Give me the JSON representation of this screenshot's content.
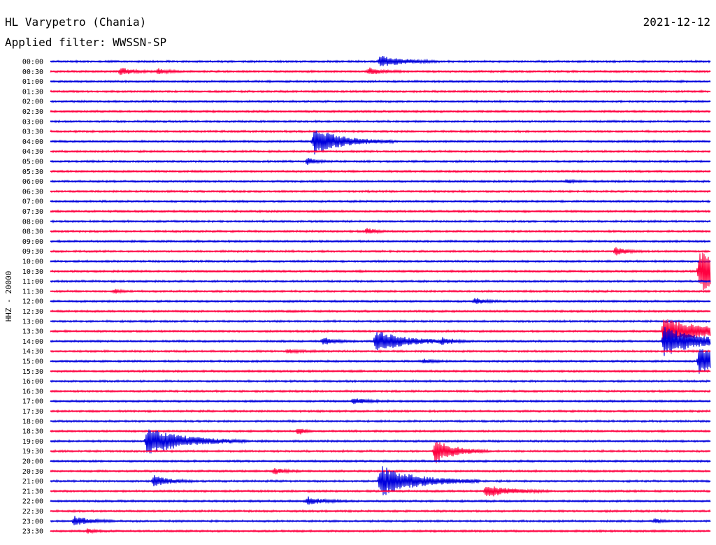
{
  "header": {
    "station": "HL Varypetro (Chania)",
    "date": "2021-12-12",
    "filter": "Applied filter: WWSSN-SP"
  },
  "colors": {
    "odd_row": "#0000dd",
    "even_row": "#ff0040",
    "text": "#000000",
    "background": "#ffffff"
  },
  "chart_data": {
    "type": "helicorder",
    "ylabel": "HHZ - 20000",
    "row_labels": [
      "00:00",
      "00:30",
      "01:00",
      "01:30",
      "02:00",
      "02:30",
      "03:00",
      "03:30",
      "04:00",
      "04:30",
      "05:00",
      "05:30",
      "06:00",
      "06:30",
      "07:00",
      "07:30",
      "08:00",
      "08:30",
      "09:00",
      "09:30",
      "10:00",
      "10:30",
      "11:00",
      "11:30",
      "12:00",
      "12:30",
      "13:00",
      "13:30",
      "14:00",
      "14:30",
      "15:00",
      "15:30",
      "16:00",
      "16:30",
      "17:00",
      "17:30",
      "18:00",
      "18:30",
      "19:00",
      "19:30",
      "20:00",
      "20:30",
      "21:00",
      "21:30",
      "22:00",
      "22:30",
      "23:00",
      "23:30"
    ],
    "minutes_per_row": 30,
    "series_colors": [
      "#0000dd",
      "#ff0040"
    ],
    "events": [
      {
        "row": 0,
        "minute": 15.0,
        "amp": 1.2,
        "dur": 0.9
      },
      {
        "row": 1,
        "minute": 3.2,
        "amp": 0.7,
        "dur": 0.5
      },
      {
        "row": 1,
        "minute": 4.9,
        "amp": 0.5,
        "dur": 0.4
      },
      {
        "row": 1,
        "minute": 14.5,
        "amp": 0.7,
        "dur": 0.5
      },
      {
        "row": 8,
        "minute": 12.0,
        "amp": 2.6,
        "dur": 1.2
      },
      {
        "row": 10,
        "minute": 11.7,
        "amp": 0.7,
        "dur": 0.3
      },
      {
        "row": 12,
        "minute": 23.5,
        "amp": 0.3,
        "dur": 0.3
      },
      {
        "row": 17,
        "minute": 14.4,
        "amp": 0.6,
        "dur": 0.3
      },
      {
        "row": 19,
        "minute": 25.7,
        "amp": 0.8,
        "dur": 0.4
      },
      {
        "row": 21,
        "minute": 29.5,
        "amp": 4.0,
        "dur": 2.0
      },
      {
        "row": 23,
        "minute": 2.9,
        "amp": 0.4,
        "dur": 0.3
      },
      {
        "row": 24,
        "minute": 19.3,
        "amp": 0.6,
        "dur": 0.4
      },
      {
        "row": 27,
        "minute": 27.9,
        "amp": 3.0,
        "dur": 1.6
      },
      {
        "row": 28,
        "minute": 12.4,
        "amp": 0.7,
        "dur": 0.5
      },
      {
        "row": 28,
        "minute": 14.8,
        "amp": 2.3,
        "dur": 1.2
      },
      {
        "row": 28,
        "minute": 17.8,
        "amp": 0.5,
        "dur": 0.5
      },
      {
        "row": 28,
        "minute": 27.9,
        "amp": 3.0,
        "dur": 1.4
      },
      {
        "row": 29,
        "minute": 10.8,
        "amp": 0.3,
        "dur": 0.5
      },
      {
        "row": 30,
        "minute": 17.0,
        "amp": 0.4,
        "dur": 0.3
      },
      {
        "row": 30,
        "minute": 29.5,
        "amp": 2.6,
        "dur": 1.4
      },
      {
        "row": 34,
        "minute": 13.8,
        "amp": 0.5,
        "dur": 0.6
      },
      {
        "row": 38,
        "minute": 4.4,
        "amp": 3.0,
        "dur": 1.5
      },
      {
        "row": 37,
        "minute": 11.3,
        "amp": 0.8,
        "dur": 0.2
      },
      {
        "row": 39,
        "minute": 17.5,
        "amp": 2.4,
        "dur": 0.8
      },
      {
        "row": 41,
        "minute": 10.2,
        "amp": 0.6,
        "dur": 0.4
      },
      {
        "row": 42,
        "minute": 4.7,
        "amp": 1.2,
        "dur": 0.6
      },
      {
        "row": 42,
        "minute": 15.0,
        "amp": 3.2,
        "dur": 1.5
      },
      {
        "row": 43,
        "minute": 19.8,
        "amp": 1.2,
        "dur": 1.0
      },
      {
        "row": 44,
        "minute": 11.7,
        "amp": 0.8,
        "dur": 0.6
      },
      {
        "row": 46,
        "minute": 1.1,
        "amp": 1.0,
        "dur": 0.6
      },
      {
        "row": 46,
        "minute": 27.5,
        "amp": 0.4,
        "dur": 0.3
      },
      {
        "row": 47,
        "minute": 1.7,
        "amp": 0.4,
        "dur": 0.3
      }
    ]
  }
}
